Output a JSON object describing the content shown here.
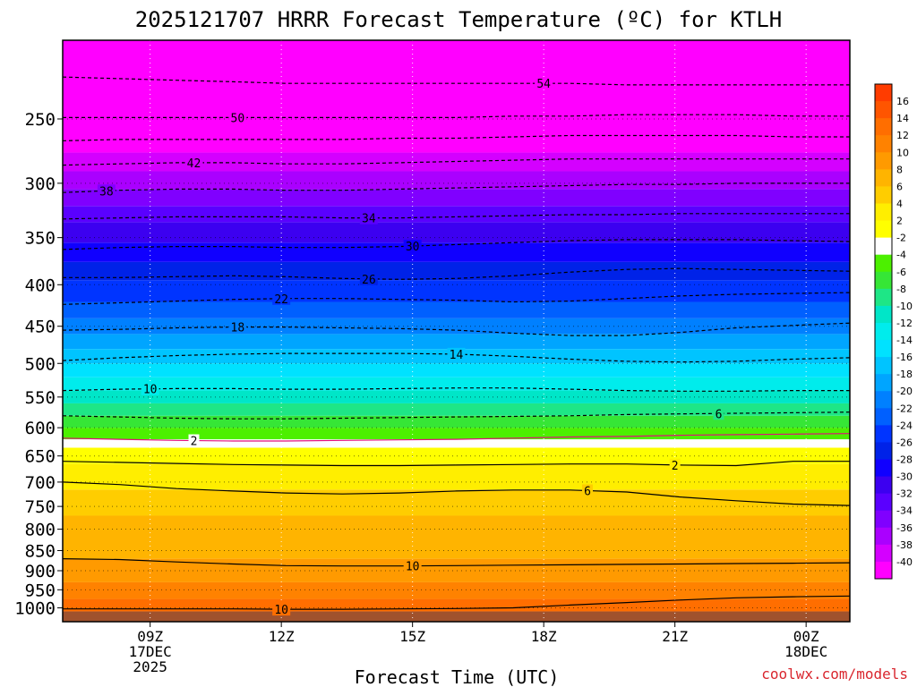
{
  "chart_data": {
    "type": "heatmap",
    "title": "2025121707 HRRR Forecast Temperature (ºC) for KTLH",
    "xlabel": "Forecast Time (UTC)",
    "ylabel": "",
    "credit": "coolwx.com/models",
    "x_range_hours": [
      7.0,
      25.0
    ],
    "y_range_hPa": [
      1040,
      200
    ],
    "y_scale": "log-pressure",
    "y_ticks": [
      {
        "value": 250,
        "label": "250"
      },
      {
        "value": 300,
        "label": "300"
      },
      {
        "value": 350,
        "label": "350"
      },
      {
        "value": 400,
        "label": "400"
      },
      {
        "value": 450,
        "label": "450"
      },
      {
        "value": 500,
        "label": "500"
      },
      {
        "value": 550,
        "label": "550"
      },
      {
        "value": 600,
        "label": "600"
      },
      {
        "value": 650,
        "label": "650"
      },
      {
        "value": 700,
        "label": "700"
      },
      {
        "value": 750,
        "label": "750"
      },
      {
        "value": 800,
        "label": "800"
      },
      {
        "value": 850,
        "label": "850"
      },
      {
        "value": 900,
        "label": "900"
      },
      {
        "value": 950,
        "label": "950"
      },
      {
        "value": 1000,
        "label": "1000"
      }
    ],
    "x_ticks": [
      {
        "hour": 9,
        "lines": [
          "09Z",
          "17DEC",
          "2025"
        ]
      },
      {
        "hour": 12,
        "lines": [
          "12Z"
        ]
      },
      {
        "hour": 15,
        "lines": [
          "15Z"
        ]
      },
      {
        "hour": 18,
        "lines": [
          "18Z"
        ]
      },
      {
        "hour": 21,
        "lines": [
          "21Z"
        ]
      },
      {
        "hour": 24,
        "lines": [
          "00Z",
          "18DEC"
        ]
      }
    ],
    "colorbar": {
      "label_values": [
        16,
        14,
        12,
        10,
        8,
        6,
        4,
        2,
        -2,
        -4,
        -6,
        -8,
        -10,
        -12,
        -14,
        -16,
        -18,
        -20,
        -22,
        -24,
        -26,
        -28,
        -30,
        -32,
        -34,
        -36,
        -38,
        -40
      ],
      "colors": [
        "#ff3c00",
        "#ff5500",
        "#ff6e00",
        "#ff8200",
        "#ff9a00",
        "#ffb400",
        "#ffcd00",
        "#ffee00",
        "#ffff00",
        "#ffffff",
        "#4cf000",
        "#36e636",
        "#1ee686",
        "#00e6c8",
        "#00ecec",
        "#00e2ff",
        "#00c4ff",
        "#00a5ff",
        "#0080ff",
        "#0060ff",
        "#0034ff",
        "#0022e8",
        "#1000ff",
        "#3c00f0",
        "#5a00ff",
        "#8000ff",
        "#aa00ff",
        "#d400ff",
        "#ff00ff"
      ]
    },
    "contours": [
      {
        "value": 10,
        "label": "10",
        "hPa": [
          1003,
          1003,
          1003,
          1003,
          1004,
          1004,
          1003,
          1002,
          1000,
          992,
          985,
          978,
          972,
          969,
          967
        ],
        "label_hour": 12.0
      },
      {
        "value": 10,
        "label": "10",
        "hPa": [
          870,
          872,
          878,
          883,
          887,
          888,
          888,
          887,
          886,
          885,
          884,
          883,
          882,
          881,
          880
        ],
        "label_hour": 15.0
      },
      {
        "value": 6,
        "label": "6",
        "hPa": [
          700,
          705,
          713,
          718,
          722,
          724,
          722,
          718,
          716,
          716,
          720,
          730,
          738,
          745,
          748
        ],
        "label_hour": 19.0
      },
      {
        "value": 2,
        "label": "2",
        "hPa": [
          660,
          662,
          664,
          666,
          667,
          668,
          668,
          667,
          666,
          665,
          665,
          667,
          668,
          660,
          660
        ],
        "label_hour": 21.0
      },
      {
        "value": -2,
        "label": "2",
        "hPa": [
          618,
          620,
          622,
          623,
          623,
          622,
          621,
          620,
          618,
          616,
          615,
          613,
          612,
          611,
          610
        ],
        "label_hour": 10.0
      },
      {
        "value": -6,
        "label": "6",
        "hPa": [
          580,
          582,
          584,
          585,
          585,
          584,
          583,
          582,
          581,
          580,
          578,
          577,
          576,
          575,
          574
        ],
        "label_hour": 22.0
      },
      {
        "value": -10,
        "label": "10",
        "hPa": [
          540,
          538,
          537,
          537,
          538,
          538,
          537,
          536,
          536,
          538,
          540,
          541,
          541,
          540,
          540
        ],
        "label_hour": 9.0
      },
      {
        "value": -14,
        "label": "14",
        "hPa": [
          496,
          492,
          489,
          487,
          486,
          486,
          486,
          487,
          490,
          494,
          497,
          498,
          497,
          494,
          492
        ],
        "label_hour": 16.0
      },
      {
        "value": -18,
        "label": "18",
        "hPa": [
          455,
          454,
          452,
          451,
          451,
          452,
          453,
          455,
          459,
          462,
          462,
          458,
          452,
          449,
          446
        ],
        "label_hour": 11.0
      },
      {
        "value": -22,
        "label": "22",
        "hPa": [
          423,
          421,
          419,
          417,
          416,
          416,
          417,
          418,
          420,
          419,
          416,
          413,
          411,
          410,
          409
        ],
        "label_hour": 12.0
      },
      {
        "value": -26,
        "label": "26",
        "hPa": [
          392,
          392,
          391,
          390,
          391,
          393,
          394,
          393,
          390,
          386,
          383,
          382,
          383,
          384,
          385
        ],
        "label_hour": 14.0
      },
      {
        "value": -30,
        "label": "30",
        "hPa": [
          362,
          360,
          359,
          359,
          360,
          360,
          359,
          357,
          355,
          353,
          352,
          352,
          352,
          353,
          354
        ],
        "label_hour": 15.0
      },
      {
        "value": -34,
        "label": "34",
        "hPa": [
          332,
          331,
          330,
          330,
          330,
          331,
          331,
          330,
          329,
          328,
          328,
          327,
          327,
          327,
          327
        ],
        "label_hour": 14.0
      },
      {
        "value": -38,
        "label": "38",
        "hPa": [
          308,
          306,
          305,
          305,
          306,
          306,
          305,
          304,
          303,
          302,
          301,
          301,
          300,
          300,
          300
        ],
        "label_hour": 8.0
      },
      {
        "value": -42,
        "label": "42",
        "hPa": [
          285,
          284,
          283,
          283,
          284,
          284,
          283,
          282,
          281,
          280,
          280,
          280,
          280,
          280,
          280
        ],
        "label_hour": 10.0
      },
      {
        "value": -46,
        "label": "",
        "hPa": [
          266,
          265,
          265,
          265,
          265,
          265,
          264,
          264,
          263,
          262,
          262,
          262,
          262,
          263,
          263
        ],
        "label_hour": null
      },
      {
        "value": -50,
        "label": "50",
        "hPa": [
          249,
          249,
          249,
          249,
          249,
          249,
          249,
          249,
          248,
          248,
          247,
          247,
          247,
          248,
          248
        ],
        "label_hour": 11.0
      },
      {
        "value": -54,
        "label": "54",
        "hPa": [
          222,
          223,
          224,
          225,
          226,
          226,
          226,
          226,
          226,
          226,
          227,
          227,
          227,
          227,
          227
        ],
        "label_hour": 18.0
      }
    ],
    "contour_hours": [
      7.0,
      8.3,
      9.6,
      10.9,
      12.1,
      13.4,
      14.7,
      16.0,
      17.3,
      18.6,
      19.9,
      21.1,
      22.4,
      23.7,
      25.0
    ],
    "color_layers": [
      {
        "top_hPa": 1040,
        "bottom_hPa": 1010,
        "color": "#a0522d"
      },
      {
        "top_hPa": 1010,
        "bottom_hPa": 975,
        "color": "#ff6e00"
      },
      {
        "top_hPa": 975,
        "bottom_hPa": 930,
        "color": "#ff8200"
      },
      {
        "top_hPa": 930,
        "bottom_hPa": 870,
        "color": "#ff9a00"
      },
      {
        "top_hPa": 870,
        "bottom_hPa": 770,
        "color": "#ffb400"
      },
      {
        "top_hPa": 770,
        "bottom_hPa": 715,
        "color": "#ffcd00"
      },
      {
        "top_hPa": 715,
        "bottom_hPa": 665,
        "color": "#ffee00"
      },
      {
        "top_hPa": 665,
        "bottom_hPa": 635,
        "color": "#ffff00"
      },
      {
        "top_hPa": 635,
        "bottom_hPa": 620,
        "color": "#ffffff"
      },
      {
        "top_hPa": 620,
        "bottom_hPa": 600,
        "color": "#4cf000"
      },
      {
        "top_hPa": 600,
        "bottom_hPa": 580,
        "color": "#36e636"
      },
      {
        "top_hPa": 580,
        "bottom_hPa": 560,
        "color": "#1ee686"
      },
      {
        "top_hPa": 560,
        "bottom_hPa": 540,
        "color": "#00e6c8"
      },
      {
        "top_hPa": 540,
        "bottom_hPa": 520,
        "color": "#00ecec"
      },
      {
        "top_hPa": 520,
        "bottom_hPa": 500,
        "color": "#00e2ff"
      },
      {
        "top_hPa": 500,
        "bottom_hPa": 480,
        "color": "#00c4ff"
      },
      {
        "top_hPa": 480,
        "bottom_hPa": 460,
        "color": "#00a5ff"
      },
      {
        "top_hPa": 460,
        "bottom_hPa": 440,
        "color": "#0080ff"
      },
      {
        "top_hPa": 440,
        "bottom_hPa": 420,
        "color": "#0060ff"
      },
      {
        "top_hPa": 420,
        "bottom_hPa": 395,
        "color": "#0034ff"
      },
      {
        "top_hPa": 395,
        "bottom_hPa": 375,
        "color": "#0022e8"
      },
      {
        "top_hPa": 375,
        "bottom_hPa": 355,
        "color": "#1000ff"
      },
      {
        "top_hPa": 355,
        "bottom_hPa": 335,
        "color": "#3c00f0"
      },
      {
        "top_hPa": 335,
        "bottom_hPa": 320,
        "color": "#5a00ff"
      },
      {
        "top_hPa": 320,
        "bottom_hPa": 305,
        "color": "#8000ff"
      },
      {
        "top_hPa": 305,
        "bottom_hPa": 290,
        "color": "#aa00ff"
      },
      {
        "top_hPa": 290,
        "bottom_hPa": 275,
        "color": "#d400ff"
      },
      {
        "top_hPa": 275,
        "bottom_hPa": 200,
        "color": "#ff00ff"
      }
    ]
  }
}
